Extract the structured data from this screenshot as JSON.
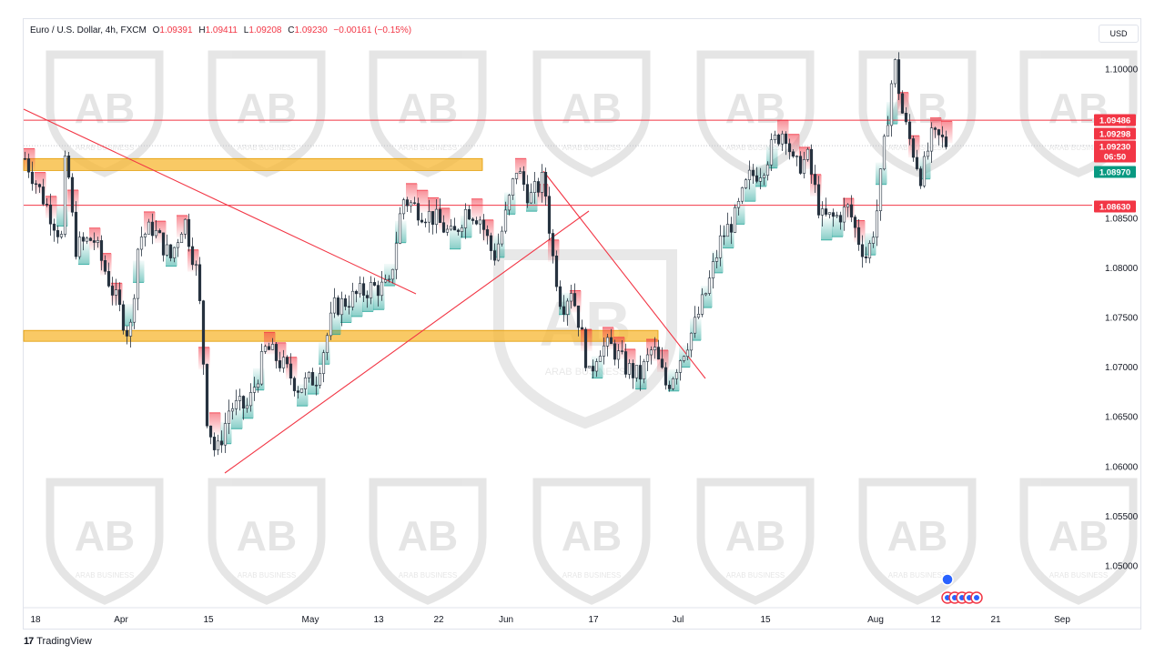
{
  "header": {
    "symbol": "Euro / U.S. Dollar, 4h, FXCM",
    "ohlc": [
      {
        "label": "O",
        "value": "1.09391"
      },
      {
        "label": "H",
        "value": "1.09411"
      },
      {
        "label": "L",
        "value": "1.09208"
      },
      {
        "label": "C",
        "value": "1.09230"
      }
    ],
    "change": "−0.00161 (−0.15%)"
  },
  "currency_button": "USD",
  "footer": {
    "brand": "TradingView",
    "logo_icon": "tradingview-logo-icon"
  },
  "watermark": {
    "text": "ARAB BUSINESS",
    "icon": "arab-business-shield-icon"
  },
  "colors": {
    "up_fill": "#26a69a",
    "down_fill": "#f23645",
    "candle": "#26323f",
    "resistance": "#f23645",
    "zone": "#f7b731",
    "support_label": "#089981"
  },
  "chart_data": {
    "type": "candlestick",
    "xaxis_ticks": [
      "18",
      "Apr",
      "15",
      "May",
      "13",
      "22",
      "Jun",
      "17",
      "Jul",
      "15",
      "Aug",
      "12",
      "21",
      "Sep"
    ],
    "yaxis_ticks": [
      "1.10000",
      "1.08500",
      "1.08000",
      "1.07500",
      "1.07000",
      "1.06500",
      "1.06000",
      "1.05500",
      "1.05000"
    ],
    "ylim": [
      1.0455,
      1.1035
    ],
    "price_labels": [
      {
        "value": "1.09486",
        "kind": "resistance"
      },
      {
        "value": "1.09298",
        "kind": "indicator-upper"
      },
      {
        "value": "1.09230",
        "kind": "last-price"
      },
      {
        "value": "06:50",
        "kind": "countdown"
      },
      {
        "value": "1.08970",
        "kind": "indicator-lower"
      },
      {
        "value": "1.08630",
        "kind": "support"
      }
    ],
    "horizontal_lines": [
      1.09486,
      1.0923,
      1.0863
    ],
    "zones": [
      {
        "from": 1.0898,
        "to": 1.091
      },
      {
        "from": 1.0726,
        "to": 1.0737
      }
    ],
    "trendlines": [
      {
        "from": [
          "Mar 14",
          1.0955
        ],
        "to": [
          "May 12",
          1.0771
        ]
      },
      {
        "from": [
          "Apr 16",
          1.0597
        ],
        "to": [
          "Jun 12",
          1.086
        ]
      },
      {
        "from": [
          "Jun 6",
          1.0897
        ],
        "to": [
          "Jul 1",
          1.069
        ]
      }
    ],
    "series_path": [
      [
        0,
        1.091
      ],
      [
        20,
        1.087
      ],
      [
        40,
        1.083
      ],
      [
        45,
        1.092
      ],
      [
        55,
        1.082
      ],
      [
        75,
        1.083
      ],
      [
        95,
        1.078
      ],
      [
        115,
        1.073
      ],
      [
        125,
        1.083
      ],
      [
        140,
        1.084
      ],
      [
        160,
        1.081
      ],
      [
        175,
        1.085
      ],
      [
        190,
        1.079
      ],
      [
        200,
        1.065
      ],
      [
        210,
        1.061
      ],
      [
        225,
        1.066
      ],
      [
        245,
        1.066
      ],
      [
        265,
        1.072
      ],
      [
        285,
        1.07
      ],
      [
        300,
        1.068
      ],
      [
        320,
        1.069
      ],
      [
        340,
        1.076
      ],
      [
        360,
        1.077
      ],
      [
        380,
        1.078
      ],
      [
        400,
        1.078
      ],
      [
        415,
        1.087
      ],
      [
        430,
        1.086
      ],
      [
        450,
        1.085
      ],
      [
        470,
        1.083
      ],
      [
        485,
        1.086
      ],
      [
        500,
        1.085
      ],
      [
        515,
        1.081
      ],
      [
        525,
        1.084
      ],
      [
        540,
        1.09
      ],
      [
        555,
        1.087
      ],
      [
        570,
        1.089
      ],
      [
        580,
        1.081
      ],
      [
        590,
        1.076
      ],
      [
        600,
        1.078
      ],
      [
        610,
        1.074
      ],
      [
        620,
        1.069
      ],
      [
        630,
        1.072
      ],
      [
        645,
        1.072
      ],
      [
        660,
        1.07
      ],
      [
        675,
        1.069
      ],
      [
        690,
        1.072
      ],
      [
        705,
        1.068
      ],
      [
        720,
        1.071
      ],
      [
        735,
        1.074
      ],
      [
        750,
        1.078
      ],
      [
        765,
        1.083
      ],
      [
        780,
        1.085
      ],
      [
        795,
        1.089
      ],
      [
        810,
        1.09
      ],
      [
        825,
        1.093
      ],
      [
        835,
        1.094
      ],
      [
        845,
        1.09
      ],
      [
        860,
        1.091
      ],
      [
        875,
        1.085
      ],
      [
        890,
        1.085
      ],
      [
        905,
        1.086
      ],
      [
        915,
        1.083
      ],
      [
        925,
        1.081
      ],
      [
        935,
        1.085
      ],
      [
        945,
        1.093
      ],
      [
        955,
        1.101
      ],
      [
        965,
        1.095
      ],
      [
        975,
        1.092
      ],
      [
        985,
        1.089
      ],
      [
        995,
        1.093
      ],
      [
        1005,
        1.093
      ],
      [
        1015,
        1.0923
      ]
    ]
  }
}
